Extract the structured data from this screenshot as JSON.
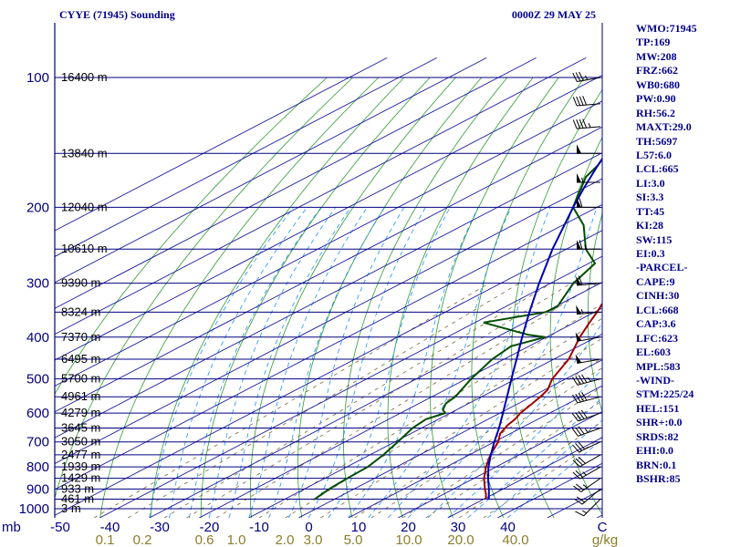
{
  "header": {
    "station": "CYYE (71945) Sounding",
    "time": "0000Z 29 MAY 25"
  },
  "stats": [
    "WMO:71945",
    "TP:169",
    "MW:208",
    "FRZ:662",
    "WB0:680",
    "PW:0.90",
    "RH:56.2",
    "MAXT:29.0",
    "TH:5697",
    "L57:6.0",
    "LCL:665",
    "LI:3.0",
    "SI:3.3",
    "TT:45",
    "KI:28",
    "SW:115",
    "EI:0.3",
    "-PARCEL-",
    "CAPE:9",
    "CINH:30",
    "LCL:668",
    "CAP:3.6",
    "LFC:623",
    "EL:603",
    "MPL:583",
    "-WIND-",
    "STM:225/24",
    "HEL:151",
    "SHR+:0.0",
    "SRDS:82",
    "EHI:0.0",
    "BRN:0.1",
    "BSHR:85"
  ],
  "units": {
    "pressure": "mb",
    "temperature": "C",
    "mixing_ratio": "g/kg"
  },
  "colors": {
    "isobar": "#000080",
    "isotherm": "#1a1aa0",
    "dry_adiabat": "#2e9b2e",
    "moist_adiabat": "#1e90ff",
    "mixing_ratio": "#7a6a3a",
    "temperature": "#a00000",
    "dewpoint": "#004d00",
    "parcel": "#0000b0",
    "wind": "#000000"
  },
  "chart_data": {
    "type": "skew-t",
    "pressure_axis": {
      "scale": "log",
      "range_mb": [
        1000,
        100
      ],
      "tick_labels": [
        "100",
        "200",
        "300",
        "400",
        "500",
        "600",
        "700",
        "800",
        "900",
        "1000"
      ]
    },
    "temperature_axis": {
      "range_c": [
        -50,
        50
      ],
      "tick_labels": [
        "-50",
        "-40",
        "-30",
        "-20",
        "-10",
        "0",
        "10",
        "20",
        "30",
        "40"
      ]
    },
    "mixing_ratio_labels": [
      "0.1",
      "0.2",
      "0.6",
      "1.0",
      "2.0",
      "3.0",
      "5.0",
      "10.0",
      "20.0",
      "40.0"
    ],
    "height_labels": [
      {
        "p": 100,
        "text": "16400 m"
      },
      {
        "p": 150,
        "text": "13840 m"
      },
      {
        "p": 200,
        "text": "12040 m"
      },
      {
        "p": 250,
        "text": "10610 m"
      },
      {
        "p": 300,
        "text": "9390 m"
      },
      {
        "p": 350,
        "text": "8324 m"
      },
      {
        "p": 400,
        "text": "7370 m"
      },
      {
        "p": 450,
        "text": "6495 m"
      },
      {
        "p": 500,
        "text": "5700 m"
      },
      {
        "p": 550,
        "text": "4961 m"
      },
      {
        "p": 600,
        "text": "4279 m"
      },
      {
        "p": 650,
        "text": "3645 m"
      },
      {
        "p": 700,
        "text": "3050 m"
      },
      {
        "p": 750,
        "text": "2477 m"
      },
      {
        "p": 800,
        "text": "1939 m"
      },
      {
        "p": 850,
        "text": "1429 m"
      },
      {
        "p": 900,
        "text": "933 m"
      },
      {
        "p": 950,
        "text": "461 m"
      },
      {
        "p": 1000,
        "text": "3 m"
      }
    ],
    "series": [
      {
        "name": "temperature",
        "points": [
          [
            950,
            30.4
          ],
          [
            925,
            28.5
          ],
          [
            900,
            26.3
          ],
          [
            850,
            22.0
          ],
          [
            800,
            18.0
          ],
          [
            750,
            14.2
          ],
          [
            700,
            10.8
          ],
          [
            670,
            8.0
          ],
          [
            640,
            6.2
          ],
          [
            620,
            5.4
          ],
          [
            600,
            4.1
          ],
          [
            570,
            2.8
          ],
          [
            550,
            1.8
          ],
          [
            530,
            0.6
          ],
          [
            500,
            -2.7
          ],
          [
            450,
            -7.0
          ],
          [
            400,
            -13.3
          ],
          [
            370,
            -17.0
          ],
          [
            350,
            -19.5
          ],
          [
            320,
            -23.8
          ],
          [
            300,
            -27.4
          ],
          [
            270,
            -32.8
          ],
          [
            250,
            -36.7
          ],
          [
            230,
            -41.5
          ],
          [
            210,
            -46.2
          ],
          [
            200,
            -48.7
          ],
          [
            190,
            -51.0
          ],
          [
            170,
            -53.4
          ],
          [
            160,
            -54.1
          ],
          [
            150,
            -54.7
          ],
          [
            135,
            -54.1
          ],
          [
            120,
            -57.0
          ],
          [
            115,
            -58.0
          ],
          [
            110,
            -56.0
          ],
          [
            105,
            -55.7
          ],
          [
            100,
            -56.1
          ]
        ]
      },
      {
        "name": "dewpoint",
        "points": [
          [
            950,
            -4.0
          ],
          [
            900,
            -5.0
          ],
          [
            850,
            -5.5
          ],
          [
            800,
            -5.8
          ],
          [
            750,
            -7.3
          ],
          [
            700,
            -9.4
          ],
          [
            650,
            -11.8
          ],
          [
            620,
            -12.5
          ],
          [
            600,
            -11.0
          ],
          [
            590,
            -12.7
          ],
          [
            570,
            -14.6
          ],
          [
            550,
            -15.3
          ],
          [
            500,
            -19.0
          ],
          [
            450,
            -22.4
          ],
          [
            420,
            -23.6
          ],
          [
            400,
            -20.3
          ],
          [
            395,
            -24.6
          ],
          [
            370,
            -38.3
          ],
          [
            350,
            -29.8
          ],
          [
            340,
            -29.6
          ],
          [
            300,
            -35.4
          ],
          [
            270,
            -38.7
          ],
          [
            250,
            -46.1
          ],
          [
            220,
            -55.8
          ],
          [
            200,
            -64.8
          ],
          [
            170,
            -74.0
          ],
          [
            160,
            -76.0
          ],
          [
            150,
            -78.9
          ],
          [
            140,
            -79.0
          ],
          [
            130,
            -79.5
          ],
          [
            120,
            -83.6
          ],
          [
            110,
            -86.5
          ],
          [
            100,
            -88.3
          ]
        ]
      },
      {
        "name": "parcel",
        "points": [
          [
            950,
            31.0
          ],
          [
            900,
            27.1
          ],
          [
            850,
            22.8
          ],
          [
            800,
            18.5
          ],
          [
            750,
            14.3
          ],
          [
            700,
            10.0
          ],
          [
            650,
            5.6
          ],
          [
            600,
            0.6
          ],
          [
            550,
            -4.9
          ],
          [
            500,
            -10.9
          ],
          [
            450,
            -17.5
          ],
          [
            400,
            -24.9
          ],
          [
            350,
            -33.1
          ],
          [
            300,
            -42.3
          ],
          [
            250,
            -52.8
          ],
          [
            200,
            -64.8
          ],
          [
            180,
            -70.2
          ],
          [
            160,
            -76.0
          ],
          [
            140,
            -82.3
          ],
          [
            120,
            -89.1
          ],
          [
            110,
            -92.7
          ]
        ]
      }
    ],
    "wind_barbs": [
      {
        "p": 950,
        "dir": 225,
        "kt": 15
      },
      {
        "p": 900,
        "dir": 230,
        "kt": 20
      },
      {
        "p": 850,
        "dir": 235,
        "kt": 25
      },
      {
        "p": 800,
        "dir": 240,
        "kt": 25
      },
      {
        "p": 750,
        "dir": 240,
        "kt": 30
      },
      {
        "p": 700,
        "dir": 245,
        "kt": 30
      },
      {
        "p": 650,
        "dir": 250,
        "kt": 35
      },
      {
        "p": 600,
        "dir": 250,
        "kt": 40
      },
      {
        "p": 550,
        "dir": 255,
        "kt": 40
      },
      {
        "p": 500,
        "dir": 255,
        "kt": 45
      },
      {
        "p": 450,
        "dir": 260,
        "kt": 50
      },
      {
        "p": 400,
        "dir": 260,
        "kt": 50
      },
      {
        "p": 350,
        "dir": 265,
        "kt": 55
      },
      {
        "p": 300,
        "dir": 265,
        "kt": 60
      },
      {
        "p": 250,
        "dir": 270,
        "kt": 65
      },
      {
        "p": 200,
        "dir": 270,
        "kt": 60
      },
      {
        "p": 175,
        "dir": 270,
        "kt": 55
      },
      {
        "p": 150,
        "dir": 270,
        "kt": 50
      },
      {
        "p": 130,
        "dir": 265,
        "kt": 45
      },
      {
        "p": 115,
        "dir": 265,
        "kt": 40
      },
      {
        "p": 100,
        "dir": 260,
        "kt": 35
      }
    ]
  }
}
